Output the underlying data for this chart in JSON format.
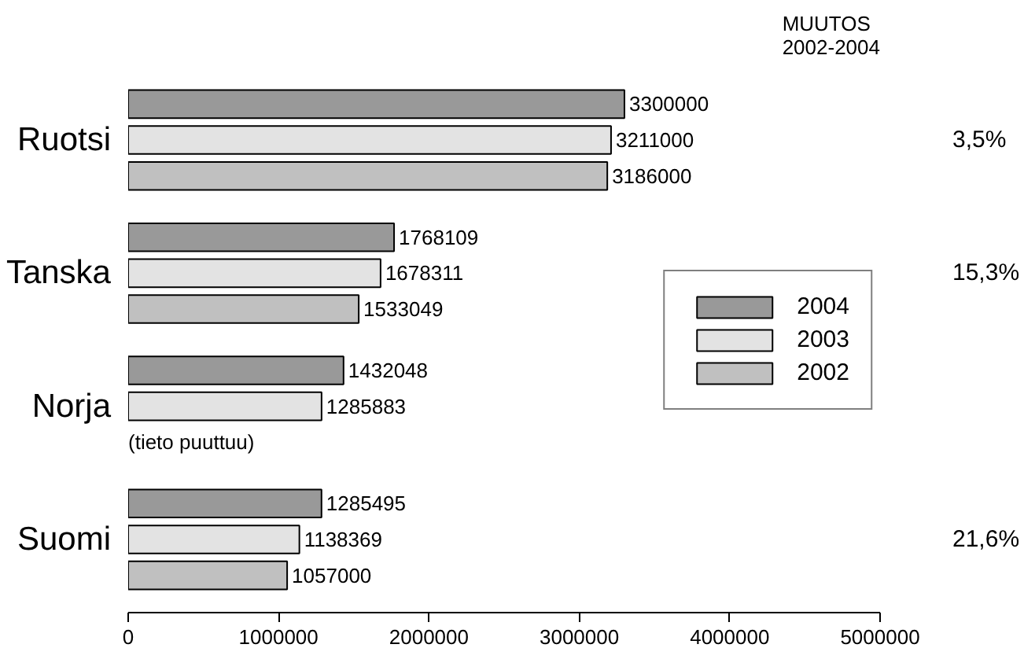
{
  "chart_data": {
    "type": "bar",
    "orientation": "horizontal",
    "categories": [
      "Ruotsi",
      "Tanska",
      "Norja",
      "Suomi"
    ],
    "series": [
      {
        "name": "2004",
        "color": "#999999",
        "values": [
          3300000,
          1768109,
          1432048,
          1285495
        ]
      },
      {
        "name": "2003",
        "color": "#e3e3e3",
        "values": [
          3211000,
          1678311,
          1285883,
          1138369
        ]
      },
      {
        "name": "2002",
        "color": "#c0c0c0",
        "values": [
          3186000,
          1533049,
          null,
          1057000
        ]
      }
    ],
    "xlim": [
      0,
      5000000
    ],
    "xticks": [
      0,
      1000000,
      2000000,
      3000000,
      4000000,
      5000000
    ],
    "data_labels": true,
    "grid": false,
    "legend": "right",
    "annotations": [
      "MUUTOS\n2002-2004",
      "3,5%",
      "15,3%",
      "21,6%",
      {
        "text": "(tieto puuttuu)",
        "x": 0,
        "y": "Norja"
      }
    ]
  }
}
